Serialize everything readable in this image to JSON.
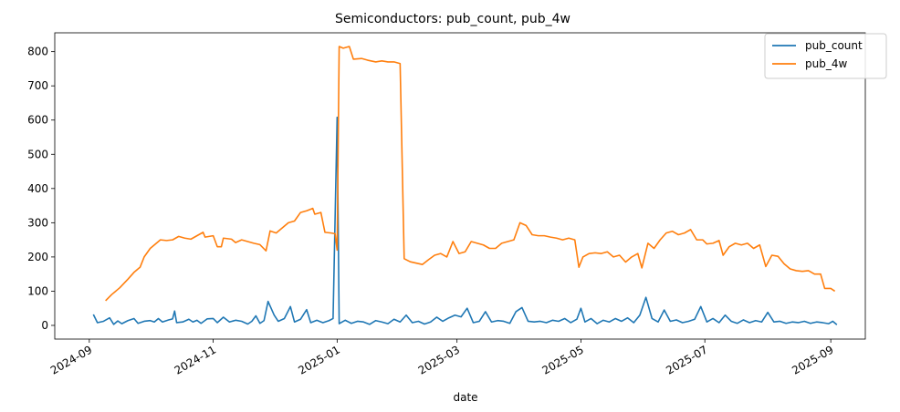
{
  "chart_data": {
    "type": "line",
    "title": "Semiconductors: pub_count, pub_4w",
    "xlabel": "date",
    "ylabel": "",
    "x_ticks": [
      "2024-09",
      "2024-11",
      "2025-01",
      "2025-03",
      "2025-05",
      "2025-07",
      "2025-09"
    ],
    "x_tick_dates": [
      "2024-09-01",
      "2024-11-01",
      "2025-01-01",
      "2025-03-01",
      "2025-05-01",
      "2025-07-01",
      "2025-09-01"
    ],
    "y_ticks": [
      "0",
      "100",
      "200",
      "300",
      "400",
      "500",
      "600",
      "700",
      "800"
    ],
    "xlim": [
      "2024-08-15",
      "2025-09-18"
    ],
    "ylim": [
      -40,
      855
    ],
    "grid": false,
    "legend": {
      "position": "top-right"
    },
    "series": [
      {
        "name": "pub_count",
        "color": "#1f77b4",
        "points": [
          [
            "2024-09-03",
            32
          ],
          [
            "2024-09-05",
            8
          ],
          [
            "2024-09-08",
            12
          ],
          [
            "2024-09-11",
            22
          ],
          [
            "2024-09-13",
            3
          ],
          [
            "2024-09-15",
            13
          ],
          [
            "2024-09-17",
            5
          ],
          [
            "2024-09-20",
            14
          ],
          [
            "2024-09-23",
            20
          ],
          [
            "2024-09-25",
            6
          ],
          [
            "2024-09-28",
            12
          ],
          [
            "2024-10-01",
            14
          ],
          [
            "2024-10-03",
            10
          ],
          [
            "2024-10-05",
            20
          ],
          [
            "2024-10-07",
            10
          ],
          [
            "2024-10-10",
            16
          ],
          [
            "2024-10-12",
            19
          ],
          [
            "2024-10-13",
            42
          ],
          [
            "2024-10-14",
            8
          ],
          [
            "2024-10-17",
            10
          ],
          [
            "2024-10-20",
            18
          ],
          [
            "2024-10-22",
            10
          ],
          [
            "2024-10-24",
            15
          ],
          [
            "2024-10-26",
            6
          ],
          [
            "2024-10-29",
            19
          ],
          [
            "2024-11-01",
            20
          ],
          [
            "2024-11-03",
            8
          ],
          [
            "2024-11-06",
            24
          ],
          [
            "2024-11-09",
            10
          ],
          [
            "2024-11-12",
            15
          ],
          [
            "2024-11-15",
            12
          ],
          [
            "2024-11-18",
            4
          ],
          [
            "2024-11-20",
            12
          ],
          [
            "2024-11-22",
            28
          ],
          [
            "2024-11-24",
            6
          ],
          [
            "2024-11-26",
            14
          ],
          [
            "2024-11-28",
            70
          ],
          [
            "2024-12-01",
            30
          ],
          [
            "2024-12-03",
            12
          ],
          [
            "2024-12-06",
            20
          ],
          [
            "2024-12-09",
            55
          ],
          [
            "2024-12-11",
            10
          ],
          [
            "2024-12-14",
            18
          ],
          [
            "2024-12-17",
            46
          ],
          [
            "2024-12-19",
            8
          ],
          [
            "2024-12-22",
            15
          ],
          [
            "2024-12-25",
            8
          ],
          [
            "2024-12-28",
            14
          ],
          [
            "2024-12-30",
            20
          ],
          [
            "2025-01-01",
            608
          ],
          [
            "2025-01-02",
            5
          ],
          [
            "2025-01-05",
            15
          ],
          [
            "2025-01-08",
            6
          ],
          [
            "2025-01-11",
            12
          ],
          [
            "2025-01-14",
            10
          ],
          [
            "2025-01-17",
            3
          ],
          [
            "2025-01-20",
            14
          ],
          [
            "2025-01-23",
            10
          ],
          [
            "2025-01-26",
            5
          ],
          [
            "2025-01-29",
            18
          ],
          [
            "2025-02-01",
            10
          ],
          [
            "2025-02-04",
            30
          ],
          [
            "2025-02-07",
            8
          ],
          [
            "2025-02-10",
            12
          ],
          [
            "2025-02-13",
            4
          ],
          [
            "2025-02-16",
            10
          ],
          [
            "2025-02-19",
            24
          ],
          [
            "2025-02-22",
            12
          ],
          [
            "2025-02-25",
            22
          ],
          [
            "2025-02-28",
            30
          ],
          [
            "2025-03-03",
            25
          ],
          [
            "2025-03-06",
            50
          ],
          [
            "2025-03-09",
            8
          ],
          [
            "2025-03-12",
            12
          ],
          [
            "2025-03-15",
            40
          ],
          [
            "2025-03-18",
            10
          ],
          [
            "2025-03-21",
            14
          ],
          [
            "2025-03-24",
            12
          ],
          [
            "2025-03-27",
            6
          ],
          [
            "2025-03-30",
            40
          ],
          [
            "2025-04-02",
            52
          ],
          [
            "2025-04-05",
            12
          ],
          [
            "2025-04-08",
            10
          ],
          [
            "2025-04-11",
            12
          ],
          [
            "2025-04-14",
            8
          ],
          [
            "2025-04-17",
            15
          ],
          [
            "2025-04-20",
            12
          ],
          [
            "2025-04-23",
            20
          ],
          [
            "2025-04-26",
            8
          ],
          [
            "2025-04-29",
            18
          ],
          [
            "2025-05-01",
            50
          ],
          [
            "2025-05-03",
            10
          ],
          [
            "2025-05-06",
            20
          ],
          [
            "2025-05-09",
            5
          ],
          [
            "2025-05-12",
            15
          ],
          [
            "2025-05-15",
            10
          ],
          [
            "2025-05-18",
            20
          ],
          [
            "2025-05-21",
            12
          ],
          [
            "2025-05-24",
            22
          ],
          [
            "2025-05-27",
            8
          ],
          [
            "2025-05-30",
            30
          ],
          [
            "2025-06-02",
            82
          ],
          [
            "2025-06-05",
            20
          ],
          [
            "2025-06-08",
            10
          ],
          [
            "2025-06-11",
            45
          ],
          [
            "2025-06-14",
            12
          ],
          [
            "2025-06-17",
            16
          ],
          [
            "2025-06-20",
            8
          ],
          [
            "2025-06-23",
            12
          ],
          [
            "2025-06-26",
            18
          ],
          [
            "2025-06-29",
            55
          ],
          [
            "2025-07-02",
            10
          ],
          [
            "2025-07-05",
            20
          ],
          [
            "2025-07-08",
            8
          ],
          [
            "2025-07-11",
            30
          ],
          [
            "2025-07-14",
            12
          ],
          [
            "2025-07-17",
            6
          ],
          [
            "2025-07-20",
            16
          ],
          [
            "2025-07-23",
            8
          ],
          [
            "2025-07-26",
            14
          ],
          [
            "2025-07-29",
            10
          ],
          [
            "2025-08-01",
            38
          ],
          [
            "2025-08-04",
            10
          ],
          [
            "2025-08-07",
            12
          ],
          [
            "2025-08-10",
            6
          ],
          [
            "2025-08-13",
            10
          ],
          [
            "2025-08-16",
            8
          ],
          [
            "2025-08-19",
            12
          ],
          [
            "2025-08-22",
            6
          ],
          [
            "2025-08-25",
            10
          ],
          [
            "2025-08-28",
            8
          ],
          [
            "2025-08-31",
            5
          ],
          [
            "2025-09-02",
            12
          ],
          [
            "2025-09-04",
            2
          ]
        ]
      },
      {
        "name": "pub_4w",
        "color": "#ff7f0e",
        "points": [
          [
            "2024-09-09",
            72
          ],
          [
            "2024-09-12",
            90
          ],
          [
            "2024-09-16",
            110
          ],
          [
            "2024-09-20",
            135
          ],
          [
            "2024-09-23",
            155
          ],
          [
            "2024-09-26",
            170
          ],
          [
            "2024-09-28",
            200
          ],
          [
            "2024-10-01",
            225
          ],
          [
            "2024-10-04",
            240
          ],
          [
            "2024-10-06",
            250
          ],
          [
            "2024-10-09",
            248
          ],
          [
            "2024-10-12",
            250
          ],
          [
            "2024-10-15",
            260
          ],
          [
            "2024-10-18",
            255
          ],
          [
            "2024-10-21",
            252
          ],
          [
            "2024-10-24",
            262
          ],
          [
            "2024-10-27",
            272
          ],
          [
            "2024-10-28",
            258
          ],
          [
            "2024-11-01",
            262
          ],
          [
            "2024-11-03",
            230
          ],
          [
            "2024-11-05",
            230
          ],
          [
            "2024-11-06",
            255
          ],
          [
            "2024-11-10",
            252
          ],
          [
            "2024-11-12",
            242
          ],
          [
            "2024-11-15",
            250
          ],
          [
            "2024-11-18",
            245
          ],
          [
            "2024-11-21",
            240
          ],
          [
            "2024-11-24",
            236
          ],
          [
            "2024-11-27",
            218
          ],
          [
            "2024-11-29",
            276
          ],
          [
            "2024-12-02",
            270
          ],
          [
            "2024-12-05",
            285
          ],
          [
            "2024-12-08",
            300
          ],
          [
            "2024-12-11",
            305
          ],
          [
            "2024-12-14",
            330
          ],
          [
            "2024-12-17",
            335
          ],
          [
            "2024-12-20",
            342
          ],
          [
            "2024-12-21",
            325
          ],
          [
            "2024-12-24",
            330
          ],
          [
            "2024-12-26",
            272
          ],
          [
            "2024-12-29",
            270
          ],
          [
            "2024-12-31",
            268
          ],
          [
            "2025-01-01",
            220
          ],
          [
            "2025-01-02",
            815
          ],
          [
            "2025-01-04",
            810
          ],
          [
            "2025-01-07",
            815
          ],
          [
            "2025-01-09",
            778
          ],
          [
            "2025-01-13",
            780
          ],
          [
            "2025-01-16",
            775
          ],
          [
            "2025-01-20",
            770
          ],
          [
            "2025-01-23",
            773
          ],
          [
            "2025-01-26",
            770
          ],
          [
            "2025-01-29",
            770
          ],
          [
            "2025-02-01",
            765
          ],
          [
            "2025-02-03",
            195
          ],
          [
            "2025-02-06",
            186
          ],
          [
            "2025-02-09",
            182
          ],
          [
            "2025-02-12",
            178
          ],
          [
            "2025-02-15",
            192
          ],
          [
            "2025-02-18",
            205
          ],
          [
            "2025-02-21",
            210
          ],
          [
            "2025-02-24",
            200
          ],
          [
            "2025-02-27",
            245
          ],
          [
            "2025-03-02",
            210
          ],
          [
            "2025-03-05",
            215
          ],
          [
            "2025-03-08",
            245
          ],
          [
            "2025-03-11",
            240
          ],
          [
            "2025-03-14",
            235
          ],
          [
            "2025-03-17",
            225
          ],
          [
            "2025-03-20",
            225
          ],
          [
            "2025-03-23",
            240
          ],
          [
            "2025-03-26",
            245
          ],
          [
            "2025-03-29",
            250
          ],
          [
            "2025-04-01",
            300
          ],
          [
            "2025-04-04",
            292
          ],
          [
            "2025-04-07",
            265
          ],
          [
            "2025-04-10",
            262
          ],
          [
            "2025-04-13",
            262
          ],
          [
            "2025-04-16",
            258
          ],
          [
            "2025-04-19",
            255
          ],
          [
            "2025-04-22",
            250
          ],
          [
            "2025-04-25",
            255
          ],
          [
            "2025-04-28",
            250
          ],
          [
            "2025-04-30",
            170
          ],
          [
            "2025-05-02",
            200
          ],
          [
            "2025-05-05",
            210
          ],
          [
            "2025-05-08",
            212
          ],
          [
            "2025-05-11",
            210
          ],
          [
            "2025-05-14",
            215
          ],
          [
            "2025-05-17",
            200
          ],
          [
            "2025-05-20",
            205
          ],
          [
            "2025-05-23",
            185
          ],
          [
            "2025-05-26",
            200
          ],
          [
            "2025-05-29",
            210
          ],
          [
            "2025-05-31",
            168
          ],
          [
            "2025-06-03",
            240
          ],
          [
            "2025-06-06",
            225
          ],
          [
            "2025-06-09",
            250
          ],
          [
            "2025-06-12",
            270
          ],
          [
            "2025-06-15",
            275
          ],
          [
            "2025-06-18",
            265
          ],
          [
            "2025-06-21",
            270
          ],
          [
            "2025-06-24",
            280
          ],
          [
            "2025-06-27",
            250
          ],
          [
            "2025-06-30",
            250
          ],
          [
            "2025-07-02",
            238
          ],
          [
            "2025-07-05",
            240
          ],
          [
            "2025-07-08",
            248
          ],
          [
            "2025-07-10",
            205
          ],
          [
            "2025-07-13",
            230
          ],
          [
            "2025-07-16",
            240
          ],
          [
            "2025-07-19",
            235
          ],
          [
            "2025-07-22",
            240
          ],
          [
            "2025-07-25",
            225
          ],
          [
            "2025-07-28",
            235
          ],
          [
            "2025-07-31",
            172
          ],
          [
            "2025-08-03",
            205
          ],
          [
            "2025-08-06",
            202
          ],
          [
            "2025-08-09",
            180
          ],
          [
            "2025-08-12",
            165
          ],
          [
            "2025-08-15",
            160
          ],
          [
            "2025-08-18",
            158
          ],
          [
            "2025-08-21",
            160
          ],
          [
            "2025-08-24",
            150
          ],
          [
            "2025-08-27",
            150
          ],
          [
            "2025-08-29",
            108
          ],
          [
            "2025-09-01",
            108
          ],
          [
            "2025-09-03",
            100
          ]
        ]
      }
    ]
  }
}
